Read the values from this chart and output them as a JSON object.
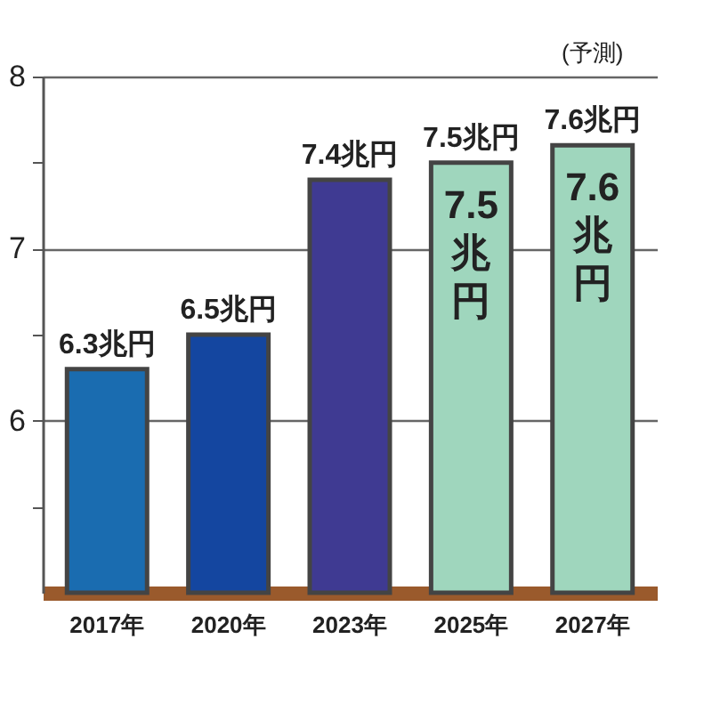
{
  "chart_data": {
    "type": "bar",
    "categories": [
      "2017年",
      "2020年",
      "2023年",
      "2025年",
      "2027年"
    ],
    "values": [
      6.3,
      6.5,
      7.4,
      7.5,
      7.6
    ],
    "value_labels": [
      "6.3兆円",
      "6.5兆円",
      "7.4兆円",
      "7.5兆円",
      "7.6兆円"
    ],
    "colors": [
      "#1a6cb0",
      "#1446a0",
      "#3f3a92",
      "#9fd6bd",
      "#9fd6bd"
    ],
    "ylim": [
      5,
      8
    ],
    "yticks": [
      {
        "value": 5.5,
        "label": null
      },
      6,
      {
        "value": 6.5,
        "label": null
      },
      7,
      {
        "value": 7.5,
        "label": null
      },
      8
    ],
    "grid": "y",
    "annotations": [
      "(予測)",
      "7.5兆円",
      "7.6兆円"
    ]
  }
}
